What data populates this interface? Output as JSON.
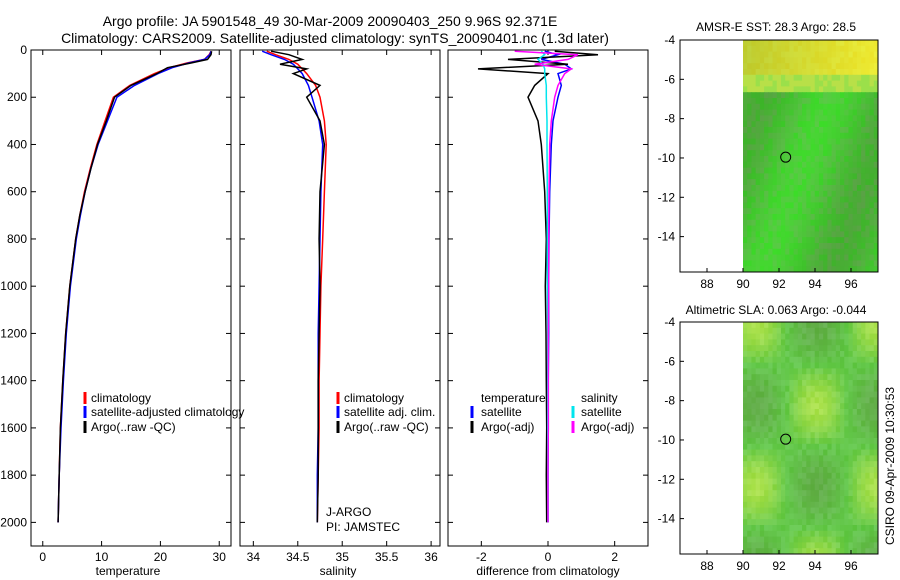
{
  "header": {
    "line1": "Argo profile: JA 5901548_49 30-Mar-2009 20090403_250 9.96S 92.371E",
    "line2": "Climatology: CARS2009. Satellite-adjusted climatology: synTS_20090401.nc (1.3d later)"
  },
  "footer_credit": "CSIRO 09-Apr-2009 10:30:53",
  "colors": {
    "climatology": "#ff0000",
    "satellite": "#0000ff",
    "argo": "#000000",
    "salinity_satellite": "#00e5ee",
    "salinity_argo": "#ff00ff"
  },
  "chart_data": [
    {
      "type": "line",
      "id": "temperature",
      "xlabel": "temperature",
      "ylabel": "",
      "xlim": [
        -2,
        32
      ],
      "ylim": [
        2100,
        0
      ],
      "xticks": [
        "0",
        "10",
        "20",
        "30"
      ],
      "xtick_values": [
        0,
        10,
        20,
        30
      ],
      "yticks": [
        "0",
        "200",
        "400",
        "600",
        "800",
        "1000",
        "1200",
        "1400",
        "1600",
        "1800",
        "2000"
      ],
      "ytick_values": [
        0,
        200,
        400,
        600,
        800,
        1000,
        1200,
        1400,
        1600,
        1800,
        2000
      ],
      "depth": [
        5,
        20,
        40,
        55,
        75,
        100,
        150,
        200,
        300,
        400,
        500,
        600,
        700,
        800,
        1000,
        1200,
        1400,
        1600,
        1800,
        2000
      ],
      "series": [
        {
          "name": "climatology",
          "values": [
            28.6,
            28.3,
            27.5,
            24.5,
            21.5,
            19.0,
            14.8,
            12.0,
            10.6,
            9.2,
            8.1,
            7.1,
            6.3,
            5.6,
            4.6,
            3.9,
            3.4,
            3.0,
            2.8,
            2.6
          ]
        },
        {
          "name": "satellite-adjusted climatology",
          "values": [
            28.6,
            28.4,
            27.5,
            24.8,
            22.0,
            19.6,
            15.6,
            12.6,
            11.0,
            9.4,
            8.2,
            7.2,
            6.4,
            5.7,
            4.7,
            4.0,
            3.5,
            3.1,
            2.8,
            2.6
          ]
        },
        {
          "name": "Argo(..raw -QC)",
          "values": [
            28.7,
            28.6,
            28.0,
            25.2,
            21.2,
            19.4,
            15.0,
            12.2,
            10.8,
            9.3,
            8.2,
            7.2,
            6.3,
            5.6,
            4.6,
            3.9,
            3.4,
            3.0,
            2.8,
            2.6
          ]
        }
      ],
      "legend": [
        "climatology",
        "satellite-adjusted climatology",
        "Argo(..raw -QC)"
      ]
    },
    {
      "type": "line",
      "id": "salinity",
      "xlabel": "salinity",
      "ylabel": "",
      "xlim": [
        33.85,
        36.1
      ],
      "ylim": [
        2100,
        0
      ],
      "xticks": [
        "34",
        "34.5",
        "35",
        "35.5",
        "36"
      ],
      "xtick_values": [
        34,
        34.5,
        35,
        35.5,
        36
      ],
      "depth": [
        5,
        20,
        40,
        60,
        80,
        100,
        150,
        200,
        300,
        400,
        600,
        800,
        1000,
        1200,
        1400,
        1600,
        1800,
        2000
      ],
      "series": [
        {
          "name": "climatology",
          "values": [
            34.15,
            34.25,
            34.4,
            34.5,
            34.55,
            34.6,
            34.7,
            34.75,
            34.8,
            34.82,
            34.8,
            34.78,
            34.76,
            34.75,
            34.74,
            34.74,
            34.73,
            34.72
          ]
        },
        {
          "name": "satellite adj. clim.",
          "values": [
            34.1,
            34.2,
            34.35,
            34.45,
            34.5,
            34.55,
            34.62,
            34.66,
            34.74,
            34.78,
            34.76,
            34.75,
            34.74,
            34.73,
            34.73,
            34.73,
            34.72,
            34.72
          ]
        },
        {
          "name": "Argo(..raw -QC)",
          "values": [
            34.2,
            34.4,
            34.55,
            34.3,
            34.6,
            34.45,
            34.75,
            34.6,
            34.75,
            34.8,
            34.75,
            34.74,
            34.75,
            34.74,
            34.73,
            34.73,
            34.73,
            34.72
          ]
        }
      ],
      "legend": [
        "climatology",
        "satellite adj. clim.",
        "Argo(..raw -QC)"
      ],
      "annotation": [
        "J-ARGO",
        "PI: JAMSTEC"
      ]
    },
    {
      "type": "line",
      "id": "difference",
      "xlabel": "difference from climatology",
      "ylabel": "",
      "xlim": [
        -3,
        3
      ],
      "ylim": [
        2100,
        0
      ],
      "xticks": [
        "-2",
        "0",
        "2"
      ],
      "xtick_values": [
        -2,
        0,
        2
      ],
      "depth": [
        5,
        20,
        40,
        60,
        80,
        100,
        150,
        200,
        300,
        400,
        600,
        800,
        1000,
        1200,
        1400,
        1600,
        1800,
        2000
      ],
      "series": [
        {
          "name": "temperature satellite",
          "values": [
            -0.1,
            0.3,
            -0.2,
            0.5,
            0.7,
            0.3,
            0.4,
            0.3,
            0.15,
            0.1,
            0.05,
            0.03,
            0.02,
            0.02,
            0.01,
            0.01,
            0.0,
            0.0
          ]
        },
        {
          "name": "temperature Argo(-adj)",
          "values": [
            0.2,
            1.5,
            -1.2,
            0.6,
            -2.1,
            0.0,
            -0.4,
            -0.6,
            -0.3,
            -0.2,
            -0.1,
            -0.05,
            -0.08,
            -0.06,
            -0.05,
            -0.04,
            -0.05,
            -0.04
          ]
        },
        {
          "name": "salinity satellite",
          "values": [
            -0.2,
            -0.1,
            -0.3,
            -0.15,
            -0.1,
            -0.1,
            -0.05,
            -0.05,
            -0.03,
            -0.03,
            -0.02,
            -0.02,
            -0.02,
            -0.01,
            -0.01,
            -0.01,
            0.0,
            0.0
          ]
        },
        {
          "name": "salinity Argo(-adj)",
          "values": [
            -1.0,
            0.9,
            0.6,
            -0.4,
            0.7,
            0.5,
            0.3,
            0.2,
            0.1,
            0.05,
            0.03,
            0.02,
            0.02,
            0.01,
            0.01,
            0.01,
            0.0,
            0.0
          ]
        }
      ],
      "legend_groups": [
        {
          "title": "temperature",
          "items": [
            "satellite",
            "Argo(-adj)"
          ]
        },
        {
          "title": "salinity",
          "items": [
            "satellite",
            "Argo(-adj)"
          ]
        }
      ]
    },
    {
      "type": "heatmap",
      "id": "sst_map",
      "title": "AMSR-E SST: 28.3 Argo: 28.5",
      "xlim": [
        86.5,
        97.5
      ],
      "ylim": [
        -15.8,
        -4
      ],
      "xticks": [
        "88",
        "90",
        "92",
        "94",
        "96"
      ],
      "xtick_values": [
        88,
        90,
        92,
        94,
        96
      ],
      "yticks": [
        "-4",
        "-6",
        "-8",
        "-10",
        "-12",
        "-14"
      ],
      "ytick_values": [
        -4,
        -6,
        -8,
        -10,
        -12,
        -14
      ],
      "profile_location": {
        "lon": 92.371,
        "lat": -9.96
      }
    },
    {
      "type": "heatmap",
      "id": "sla_map",
      "title": "Altimetric SLA: 0.063 Argo: -0.044",
      "xlim": [
        86.5,
        97.5
      ],
      "ylim": [
        -15.8,
        -4
      ],
      "xticks": [
        "88",
        "90",
        "92",
        "94",
        "96"
      ],
      "xtick_values": [
        88,
        90,
        92,
        94,
        96
      ],
      "yticks": [
        "-4",
        "-6",
        "-8",
        "-10",
        "-12",
        "-14"
      ],
      "ytick_values": [
        -4,
        -6,
        -8,
        -10,
        -12,
        -14
      ],
      "profile_location": {
        "lon": 92.371,
        "lat": -9.96
      }
    }
  ]
}
